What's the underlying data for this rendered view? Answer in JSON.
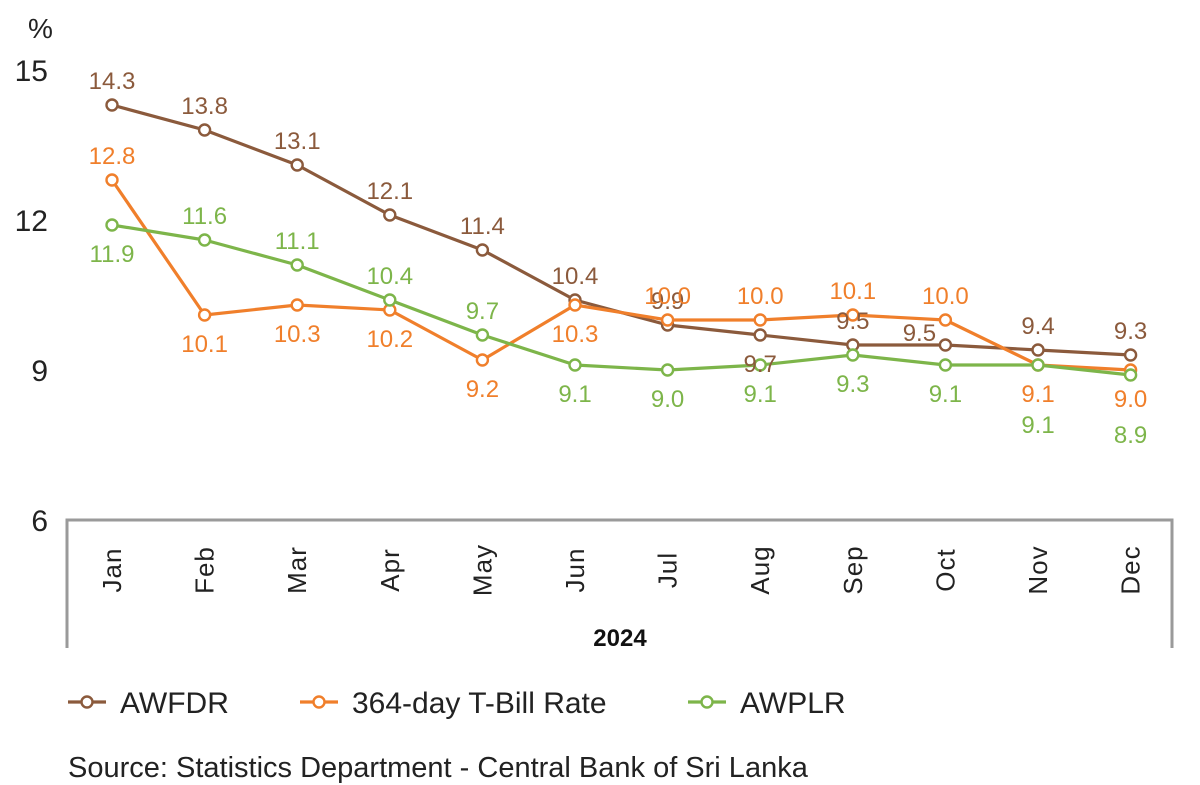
{
  "chart_data": {
    "type": "line",
    "unit": "%",
    "categories": [
      "Jan",
      "Feb",
      "Mar",
      "Apr",
      "May",
      "Jun",
      "Jul",
      "Aug",
      "Sep",
      "Oct",
      "Nov",
      "Dec"
    ],
    "group_label": "2024",
    "ylim": [
      6,
      15
    ],
    "yticks": [
      "6",
      "9",
      "12",
      "15"
    ],
    "grid": false,
    "legend_position": "bottom",
    "series": [
      {
        "name": "AWFDR",
        "color": "#8B5A3C",
        "values": [
          14.3,
          13.8,
          13.1,
          12.1,
          11.4,
          10.4,
          9.9,
          9.7,
          9.5,
          9.5,
          9.4,
          9.3
        ],
        "labels": [
          "14.3",
          "13.8",
          "13.1",
          "12.1",
          "11.4",
          "10.4",
          "9.9",
          "9.7",
          "9.5",
          "9.5",
          "9.4",
          "9.3"
        ]
      },
      {
        "name": "364-day T-Bill Rate",
        "color": "#F07F2B",
        "values": [
          12.8,
          10.1,
          10.3,
          10.2,
          9.2,
          10.3,
          10.0,
          10.0,
          10.1,
          10.0,
          9.1,
          9.0
        ],
        "labels": [
          "12.8",
          "10.1",
          "10.3",
          "10.2",
          "9.2",
          "10.3",
          "10.0",
          "10.0",
          "10.1",
          "10.0",
          "9.1",
          "9.0"
        ]
      },
      {
        "name": "AWPLR",
        "color": "#7DB54A",
        "values": [
          11.9,
          11.6,
          11.1,
          10.4,
          9.7,
          9.1,
          9.0,
          9.1,
          9.3,
          9.1,
          9.1,
          8.9
        ],
        "labels": [
          "11.9",
          "11.6",
          "11.1",
          "10.4",
          "9.7",
          "9.1",
          "9.0",
          "9.1",
          "9.3",
          "9.1",
          "9.1",
          "8.9"
        ]
      }
    ]
  },
  "source": "Source: Statistics Department - Central Bank of Sri Lanka"
}
